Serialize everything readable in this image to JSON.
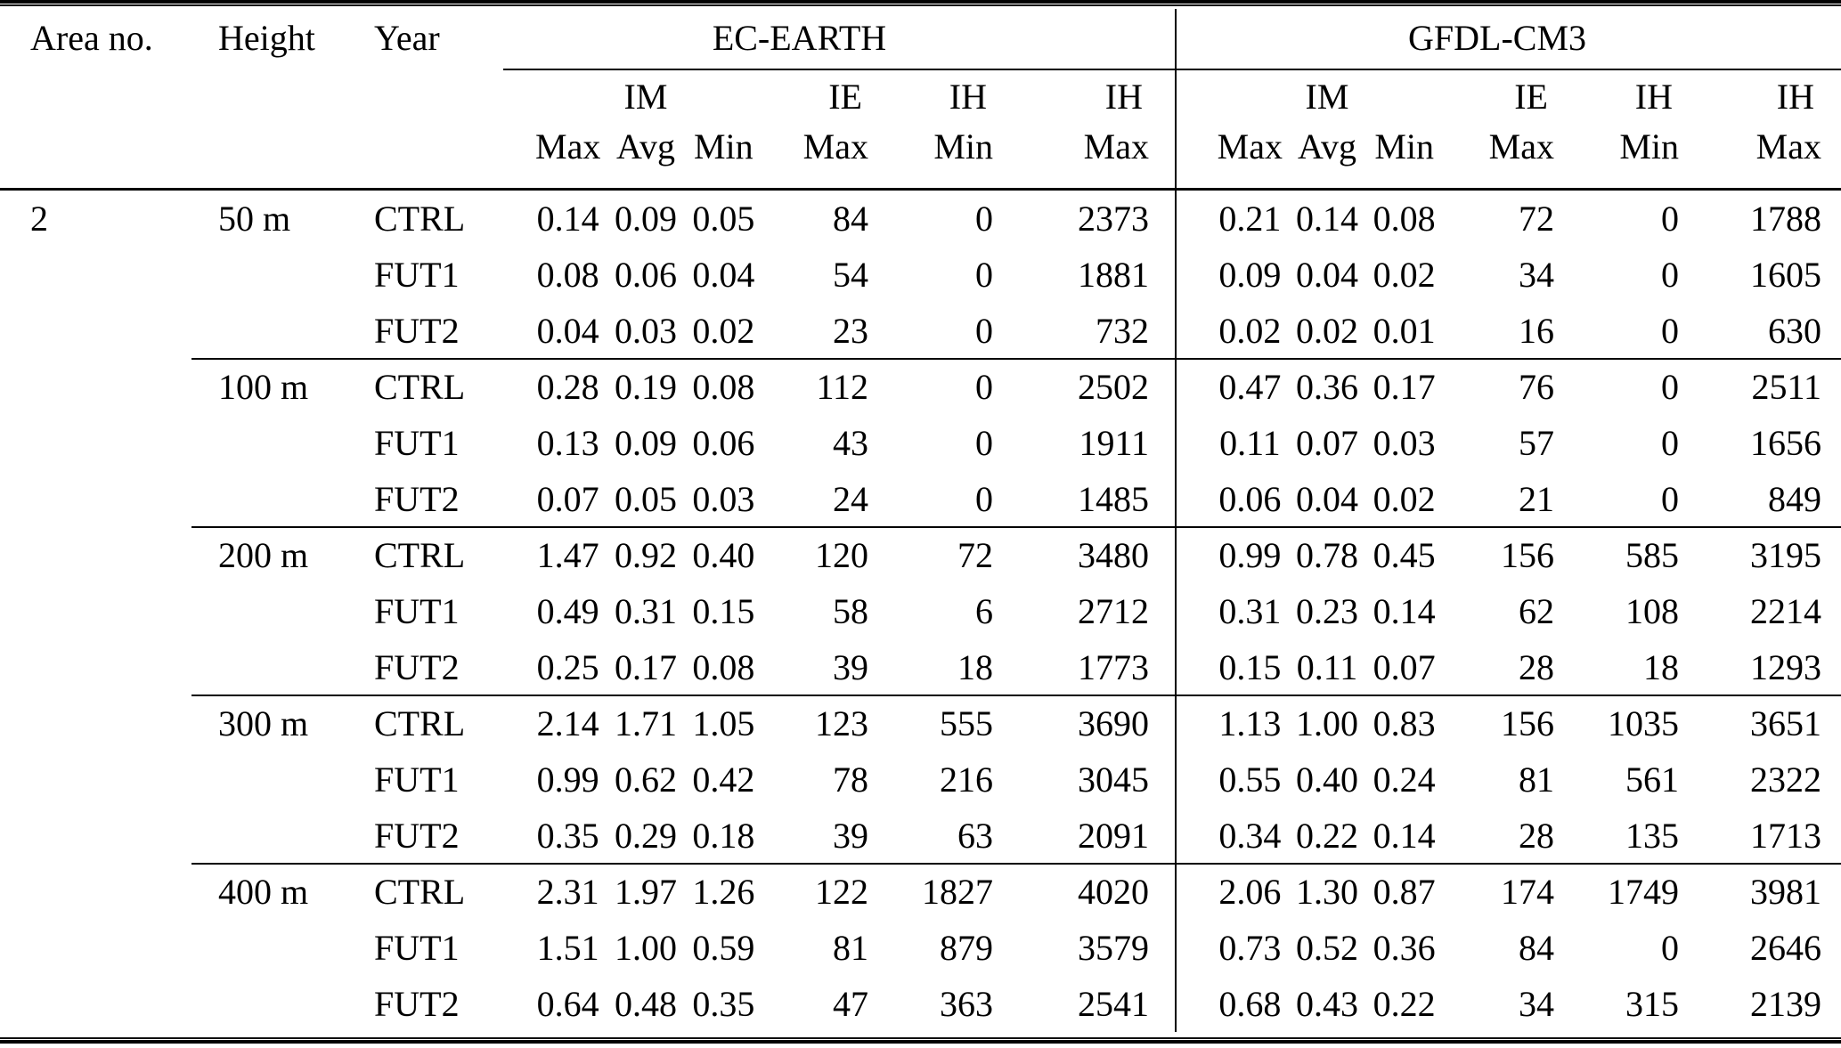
{
  "table": {
    "area_label": "Area no.",
    "height_label": "Height",
    "year_label": "Year",
    "groups": [
      "EC-EARTH",
      "GFDL-CM3"
    ],
    "subheaders": {
      "im_label": "IM",
      "ie_label": "IE",
      "ih_label": "IH",
      "max_label": "Max",
      "avg_label": "Avg",
      "min_label": "Min"
    },
    "area_value": "2",
    "blocks": [
      {
        "height": "50 m",
        "rows": [
          {
            "year": "CTRL",
            "ec": {
              "im": [
                "0.14",
                "0.09",
                "0.05"
              ],
              "ie_max": "84",
              "ih_min": "0",
              "ih_max": "2373"
            },
            "gfdl": {
              "im": [
                "0.21",
                "0.14",
                "0.08"
              ],
              "ie_max": "72",
              "ih_min": "0",
              "ih_max": "1788"
            }
          },
          {
            "year": "FUT1",
            "ec": {
              "im": [
                "0.08",
                "0.06",
                "0.04"
              ],
              "ie_max": "54",
              "ih_min": "0",
              "ih_max": "1881"
            },
            "gfdl": {
              "im": [
                "0.09",
                "0.04",
                "0.02"
              ],
              "ie_max": "34",
              "ih_min": "0",
              "ih_max": "1605"
            }
          },
          {
            "year": "FUT2",
            "ec": {
              "im": [
                "0.04",
                "0.03",
                "0.02"
              ],
              "ie_max": "23",
              "ih_min": "0",
              "ih_max": "732"
            },
            "gfdl": {
              "im": [
                "0.02",
                "0.02",
                "0.01"
              ],
              "ie_max": "16",
              "ih_min": "0",
              "ih_max": "630"
            }
          }
        ]
      },
      {
        "height": "100 m",
        "rows": [
          {
            "year": "CTRL",
            "ec": {
              "im": [
                "0.28",
                "0.19",
                "0.08"
              ],
              "ie_max": "112",
              "ih_min": "0",
              "ih_max": "2502"
            },
            "gfdl": {
              "im": [
                "0.47",
                "0.36",
                "0.17"
              ],
              "ie_max": "76",
              "ih_min": "0",
              "ih_max": "2511"
            }
          },
          {
            "year": "FUT1",
            "ec": {
              "im": [
                "0.13",
                "0.09",
                "0.06"
              ],
              "ie_max": "43",
              "ih_min": "0",
              "ih_max": "1911"
            },
            "gfdl": {
              "im": [
                "0.11",
                "0.07",
                "0.03"
              ],
              "ie_max": "57",
              "ih_min": "0",
              "ih_max": "1656"
            }
          },
          {
            "year": "FUT2",
            "ec": {
              "im": [
                "0.07",
                "0.05",
                "0.03"
              ],
              "ie_max": "24",
              "ih_min": "0",
              "ih_max": "1485"
            },
            "gfdl": {
              "im": [
                "0.06",
                "0.04",
                "0.02"
              ],
              "ie_max": "21",
              "ih_min": "0",
              "ih_max": "849"
            }
          }
        ]
      },
      {
        "height": "200 m",
        "rows": [
          {
            "year": "CTRL",
            "ec": {
              "im": [
                "1.47",
                "0.92",
                "0.40"
              ],
              "ie_max": "120",
              "ih_min": "72",
              "ih_max": "3480"
            },
            "gfdl": {
              "im": [
                "0.99",
                "0.78",
                "0.45"
              ],
              "ie_max": "156",
              "ih_min": "585",
              "ih_max": "3195"
            }
          },
          {
            "year": "FUT1",
            "ec": {
              "im": [
                "0.49",
                "0.31",
                "0.15"
              ],
              "ie_max": "58",
              "ih_min": "6",
              "ih_max": "2712"
            },
            "gfdl": {
              "im": [
                "0.31",
                "0.23",
                "0.14"
              ],
              "ie_max": "62",
              "ih_min": "108",
              "ih_max": "2214"
            }
          },
          {
            "year": "FUT2",
            "ec": {
              "im": [
                "0.25",
                "0.17",
                "0.08"
              ],
              "ie_max": "39",
              "ih_min": "18",
              "ih_max": "1773"
            },
            "gfdl": {
              "im": [
                "0.15",
                "0.11",
                "0.07"
              ],
              "ie_max": "28",
              "ih_min": "18",
              "ih_max": "1293"
            }
          }
        ]
      },
      {
        "height": "300 m",
        "rows": [
          {
            "year": "CTRL",
            "ec": {
              "im": [
                "2.14",
                "1.71",
                "1.05"
              ],
              "ie_max": "123",
              "ih_min": "555",
              "ih_max": "3690"
            },
            "gfdl": {
              "im": [
                "1.13",
                "1.00",
                "0.83"
              ],
              "ie_max": "156",
              "ih_min": "1035",
              "ih_max": "3651"
            }
          },
          {
            "year": "FUT1",
            "ec": {
              "im": [
                "0.99",
                "0.62",
                "0.42"
              ],
              "ie_max": "78",
              "ih_min": "216",
              "ih_max": "3045"
            },
            "gfdl": {
              "im": [
                "0.55",
                "0.40",
                "0.24"
              ],
              "ie_max": "81",
              "ih_min": "561",
              "ih_max": "2322"
            }
          },
          {
            "year": "FUT2",
            "ec": {
              "im": [
                "0.35",
                "0.29",
                "0.18"
              ],
              "ie_max": "39",
              "ih_min": "63",
              "ih_max": "2091"
            },
            "gfdl": {
              "im": [
                "0.34",
                "0.22",
                "0.14"
              ],
              "ie_max": "28",
              "ih_min": "135",
              "ih_max": "1713"
            }
          }
        ]
      },
      {
        "height": "400 m",
        "rows": [
          {
            "year": "CTRL",
            "ec": {
              "im": [
                "2.31",
                "1.97",
                "1.26"
              ],
              "ie_max": "122",
              "ih_min": "1827",
              "ih_max": "4020"
            },
            "gfdl": {
              "im": [
                "2.06",
                "1.30",
                "0.87"
              ],
              "ie_max": "174",
              "ih_min": "1749",
              "ih_max": "3981"
            }
          },
          {
            "year": "FUT1",
            "ec": {
              "im": [
                "1.51",
                "1.00",
                "0.59"
              ],
              "ie_max": "81",
              "ih_min": "879",
              "ih_max": "3579"
            },
            "gfdl": {
              "im": [
                "0.73",
                "0.52",
                "0.36"
              ],
              "ie_max": "84",
              "ih_min": "0",
              "ih_max": "2646"
            }
          },
          {
            "year": "FUT2",
            "ec": {
              "im": [
                "0.64",
                "0.48",
                "0.35"
              ],
              "ie_max": "47",
              "ih_min": "363",
              "ih_max": "2541"
            },
            "gfdl": {
              "im": [
                "0.68",
                "0.43",
                "0.22"
              ],
              "ie_max": "34",
              "ih_min": "315",
              "ih_max": "2139"
            }
          }
        ]
      }
    ]
  }
}
